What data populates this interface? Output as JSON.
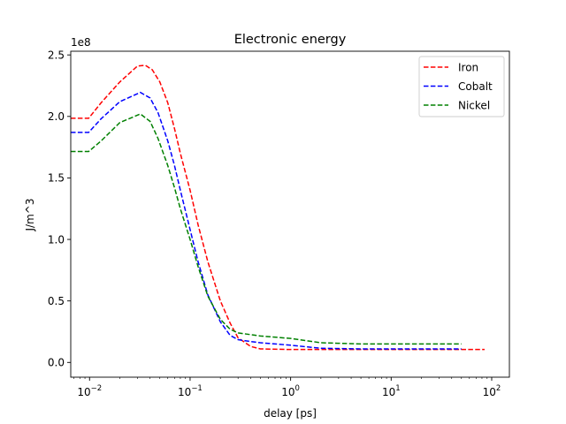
{
  "chart_data": {
    "type": "line",
    "title": "Electronic energy",
    "xlabel": "delay [ps]",
    "ylabel": "J/m^3",
    "y_offset_label": "1e8",
    "x_scale": "log",
    "xlim": [
      0.0065,
      150
    ],
    "ylim": [
      -0.12,
      2.53
    ],
    "y_unit_multiplier": 100000000,
    "x_ticks": [
      {
        "value": 0.01,
        "base": "10",
        "exp": "−2"
      },
      {
        "value": 0.1,
        "base": "10",
        "exp": "−1"
      },
      {
        "value": 1,
        "base": "10",
        "exp": "0"
      },
      {
        "value": 10,
        "base": "10",
        "exp": "1"
      },
      {
        "value": 100,
        "base": "10",
        "exp": "2"
      }
    ],
    "y_ticks": [
      {
        "value": 0.0,
        "label": "0.0"
      },
      {
        "value": 0.5,
        "label": "0.5"
      },
      {
        "value": 1.0,
        "label": "1.0"
      },
      {
        "value": 1.5,
        "label": "1.5"
      },
      {
        "value": 2.0,
        "label": "2.0"
      },
      {
        "value": 2.5,
        "label": "2.5"
      }
    ],
    "grid": false,
    "legend_position": "top-right",
    "series": [
      {
        "name": "Iron",
        "color": "#ff0000",
        "style": "dashed",
        "points": [
          [
            0.0065,
            1.985
          ],
          [
            0.0098,
            1.985
          ],
          [
            0.013,
            2.11
          ],
          [
            0.02,
            2.28
          ],
          [
            0.03,
            2.41
          ],
          [
            0.036,
            2.415
          ],
          [
            0.042,
            2.38
          ],
          [
            0.05,
            2.28
          ],
          [
            0.06,
            2.11
          ],
          [
            0.07,
            1.9
          ],
          [
            0.08,
            1.7
          ],
          [
            0.1,
            1.4
          ],
          [
            0.12,
            1.12
          ],
          [
            0.15,
            0.82
          ],
          [
            0.2,
            0.5
          ],
          [
            0.25,
            0.32
          ],
          [
            0.3,
            0.2
          ],
          [
            0.4,
            0.13
          ],
          [
            0.5,
            0.11
          ],
          [
            1.0,
            0.105
          ],
          [
            3.0,
            0.105
          ],
          [
            10,
            0.105
          ],
          [
            50,
            0.105
          ],
          [
            85,
            0.105
          ]
        ]
      },
      {
        "name": "Cobalt",
        "color": "#0000ff",
        "style": "dashed",
        "points": [
          [
            0.0065,
            1.87
          ],
          [
            0.0098,
            1.87
          ],
          [
            0.013,
            1.98
          ],
          [
            0.02,
            2.12
          ],
          [
            0.032,
            2.195
          ],
          [
            0.04,
            2.15
          ],
          [
            0.048,
            2.03
          ],
          [
            0.06,
            1.8
          ],
          [
            0.07,
            1.6
          ],
          [
            0.08,
            1.4
          ],
          [
            0.1,
            1.08
          ],
          [
            0.12,
            0.82
          ],
          [
            0.15,
            0.55
          ],
          [
            0.2,
            0.33
          ],
          [
            0.25,
            0.22
          ],
          [
            0.3,
            0.185
          ],
          [
            0.4,
            0.17
          ],
          [
            0.5,
            0.16
          ],
          [
            1.0,
            0.14
          ],
          [
            2.0,
            0.115
          ],
          [
            5.0,
            0.11
          ],
          [
            10,
            0.11
          ],
          [
            50,
            0.11
          ]
        ]
      },
      {
        "name": "Nickel",
        "color": "#008000",
        "style": "dashed",
        "points": [
          [
            0.0065,
            1.715
          ],
          [
            0.0098,
            1.715
          ],
          [
            0.013,
            1.8
          ],
          [
            0.02,
            1.95
          ],
          [
            0.032,
            2.02
          ],
          [
            0.04,
            1.96
          ],
          [
            0.048,
            1.82
          ],
          [
            0.06,
            1.6
          ],
          [
            0.07,
            1.42
          ],
          [
            0.08,
            1.25
          ],
          [
            0.1,
            1.0
          ],
          [
            0.12,
            0.78
          ],
          [
            0.15,
            0.54
          ],
          [
            0.2,
            0.35
          ],
          [
            0.25,
            0.27
          ],
          [
            0.3,
            0.24
          ],
          [
            0.5,
            0.215
          ],
          [
            1.0,
            0.195
          ],
          [
            2.0,
            0.16
          ],
          [
            5.0,
            0.15
          ],
          [
            10,
            0.15
          ],
          [
            50,
            0.15
          ]
        ]
      }
    ]
  }
}
